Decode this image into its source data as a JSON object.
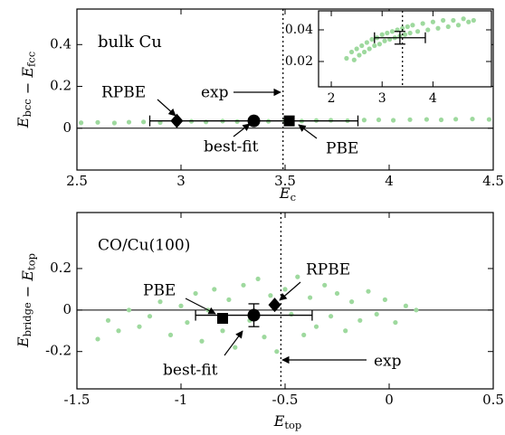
{
  "chart_data": [
    {
      "type": "scatter",
      "xlabel": [
        {
          "text": "E",
          "sub": "c"
        }
      ],
      "ylabel": [
        {
          "text": "E",
          "sub": "bcc"
        },
        {
          "text": " − "
        },
        {
          "text": "E",
          "sub": "fcc"
        }
      ],
      "xlim": [
        2.5,
        4.5
      ],
      "xticks": [
        2.5,
        3,
        3.5,
        4,
        4.5
      ],
      "ylim": [
        -0.2,
        0.57
      ],
      "yticks": [
        0,
        0.2,
        0.4
      ],
      "hline": 0,
      "vline": 3.49,
      "annotations": [
        {
          "text": "bulk Cu"
        },
        {
          "text": "exp"
        }
      ],
      "series": [
        {
          "color": "#9ed99e",
          "x": [
            2.52,
            2.6,
            2.68,
            2.75,
            2.82,
            2.9,
            2.97,
            3.05,
            3.12,
            3.2,
            3.27,
            3.35,
            3.42,
            3.5,
            3.58,
            3.65,
            3.72,
            3.8,
            3.88,
            3.95,
            4.02,
            4.1,
            4.18,
            4.25,
            4.32,
            4.4,
            4.48
          ],
          "values": [
            0.026,
            0.028,
            0.025,
            0.029,
            0.03,
            0.027,
            0.031,
            0.033,
            0.03,
            0.034,
            0.032,
            0.035,
            0.033,
            0.036,
            0.034,
            0.037,
            0.038,
            0.036,
            0.039,
            0.04,
            0.038,
            0.041,
            0.042,
            0.04,
            0.043,
            0.044,
            0.042
          ]
        },
        {
          "name": "RPBE",
          "marker": "diamond",
          "color": "#000000",
          "x": [
            2.98
          ],
          "values": [
            0.035
          ]
        },
        {
          "name": "best-fit",
          "marker": "circle",
          "color": "#000000",
          "x": [
            3.35
          ],
          "values": [
            0.035
          ],
          "xerr": [
            0.5
          ]
        },
        {
          "name": "PBE",
          "marker": "square",
          "color": "#000000",
          "x": [
            3.52
          ],
          "values": [
            0.035
          ]
        }
      ]
    },
    {
      "type": "scatter",
      "xlim": [
        1.75,
        5.15
      ],
      "xticks": [
        2,
        3,
        4
      ],
      "ylim": [
        0.004,
        0.052
      ],
      "yticks": [
        0.02,
        0.04
      ],
      "vline": 3.4,
      "series": [
        {
          "color": "#9ed99e",
          "x": [
            2.3,
            2.4,
            2.45,
            2.5,
            2.55,
            2.6,
            2.65,
            2.7,
            2.75,
            2.8,
            2.85,
            2.9,
            2.95,
            3.0,
            3.05,
            3.1,
            3.15,
            3.2,
            3.25,
            3.3,
            3.35,
            3.4,
            3.45,
            3.5,
            3.55,
            3.6,
            3.7,
            3.8,
            3.9,
            4.0,
            4.1,
            4.2,
            4.3,
            4.4,
            4.5,
            4.6,
            4.7,
            4.8
          ],
          "values": [
            0.022,
            0.026,
            0.021,
            0.028,
            0.024,
            0.03,
            0.026,
            0.032,
            0.028,
            0.034,
            0.03,
            0.035,
            0.031,
            0.037,
            0.033,
            0.038,
            0.034,
            0.039,
            0.035,
            0.04,
            0.036,
            0.041,
            0.037,
            0.042,
            0.038,
            0.043,
            0.039,
            0.044,
            0.04,
            0.045,
            0.041,
            0.046,
            0.042,
            0.046,
            0.043,
            0.047,
            0.045,
            0.046
          ]
        },
        {
          "color": "#000000",
          "x": [
            3.35
          ],
          "values": [
            0.035
          ],
          "xerr": [
            0.5
          ],
          "yerr": [
            0.004
          ]
        }
      ]
    },
    {
      "type": "scatter",
      "xlabel": [
        {
          "text": "E",
          "sub": "top"
        }
      ],
      "ylabel": [
        {
          "text": "E",
          "sub": "bridge"
        },
        {
          "text": " − "
        },
        {
          "text": "E",
          "sub": "top"
        }
      ],
      "xlim": [
        -1.5,
        0.5
      ],
      "xticks": [
        -1.5,
        -1,
        -0.5,
        0,
        0.5
      ],
      "ylim": [
        -0.38,
        0.47
      ],
      "yticks": [
        -0.2,
        0,
        0.2
      ],
      "hline": 0,
      "vline": -0.52,
      "annotations": [
        {
          "text": "CO/Cu(100)"
        },
        {
          "text": "exp"
        }
      ],
      "series": [
        {
          "color": "#9ed99e",
          "x": [
            -1.4,
            -1.35,
            -1.3,
            -1.25,
            -1.2,
            -1.15,
            -1.1,
            -1.05,
            -1.0,
            -0.97,
            -0.93,
            -0.9,
            -0.87,
            -0.84,
            -0.8,
            -0.77,
            -0.74,
            -0.7,
            -0.67,
            -0.63,
            -0.6,
            -0.57,
            -0.54,
            -0.5,
            -0.47,
            -0.44,
            -0.41,
            -0.38,
            -0.35,
            -0.31,
            -0.28,
            -0.25,
            -0.21,
            -0.18,
            -0.14,
            -0.1,
            -0.06,
            -0.02,
            0.03,
            0.08,
            0.13
          ],
          "values": [
            -0.14,
            -0.05,
            -0.1,
            0.0,
            -0.08,
            -0.03,
            0.04,
            -0.12,
            0.02,
            -0.06,
            0.08,
            -0.15,
            0.0,
            0.1,
            -0.1,
            0.05,
            -0.18,
            0.12,
            -0.05,
            0.15,
            -0.13,
            0.07,
            -0.2,
            0.1,
            -0.02,
            0.16,
            -0.12,
            0.06,
            -0.08,
            0.12,
            -0.03,
            0.08,
            -0.1,
            0.04,
            -0.05,
            0.09,
            -0.02,
            0.05,
            -0.06,
            0.02,
            0.0
          ]
        },
        {
          "name": "PBE",
          "marker": "square",
          "color": "#000000",
          "x": [
            -0.8
          ],
          "values": [
            -0.04
          ]
        },
        {
          "name": "best-fit",
          "marker": "circle",
          "color": "#000000",
          "x": [
            -0.65
          ],
          "values": [
            -0.025
          ],
          "xerr": [
            0.28
          ],
          "yerr": [
            0.055
          ]
        },
        {
          "name": "RPBE",
          "marker": "diamond",
          "color": "#000000",
          "x": [
            -0.55
          ],
          "values": [
            0.025
          ]
        }
      ]
    }
  ]
}
